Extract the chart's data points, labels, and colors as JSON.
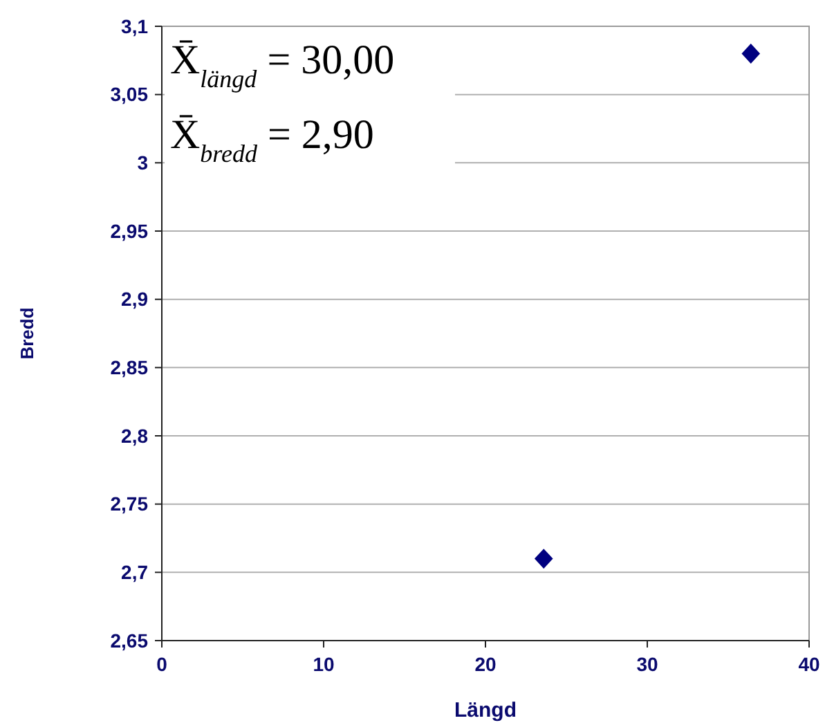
{
  "chart_data": {
    "type": "scatter",
    "xlabel": "Längd",
    "ylabel": "Bredd",
    "x": [
      23.6,
      36.4
    ],
    "series": [
      {
        "color": "#000080",
        "values": [
          2.71,
          3.08
        ]
      }
    ],
    "marker": "diamond",
    "grid": "y",
    "xlim": [
      0,
      40
    ],
    "xticks": [
      0,
      10,
      20,
      30,
      40
    ],
    "ylim": [
      2.65,
      3.1
    ],
    "yticks": [
      {
        "value": 2.65,
        "label": "2,65"
      },
      {
        "value": 2.7,
        "label": "2,7"
      },
      {
        "value": 2.75,
        "label": "2,75"
      },
      {
        "value": 2.8,
        "label": "2,8"
      },
      {
        "value": 2.85,
        "label": "2,85"
      },
      {
        "value": 2.9,
        "label": "2,9"
      },
      {
        "value": 2.95,
        "label": "2,95"
      },
      3,
      {
        "value": 3.05,
        "label": "3,05"
      },
      {
        "value": 3.1,
        "label": "3,1"
      }
    ],
    "annotations": [
      "X̄$_{längd}$ = 30,00",
      "X̄$_{bredd}$ = 2,90"
    ]
  }
}
